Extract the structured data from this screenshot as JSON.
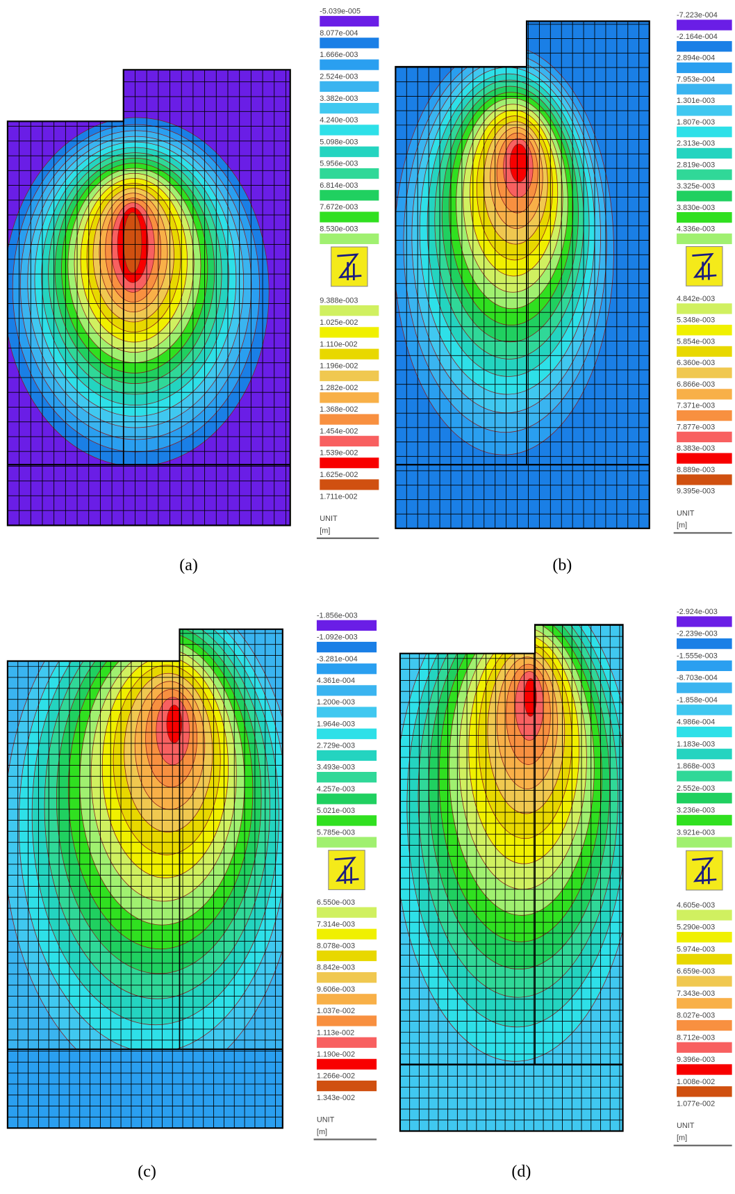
{
  "panels": [
    {
      "caption": "(a)",
      "legend_labels": [
        "-5.039e-005",
        "8.077e-004",
        "1.666e-003",
        "2.524e-003",
        "3.382e-003",
        "4.240e-003",
        "5.098e-003",
        "5.956e-003",
        "6.814e-003",
        "7.672e-003",
        "8.530e-003",
        "9.388e-003",
        "1.025e-002",
        "1.110e-002",
        "1.196e-002",
        "1.282e-002",
        "1.368e-002",
        "1.454e-002",
        "1.539e-002",
        "1.625e-002",
        "1.711e-002"
      ],
      "unit_title": "UNIT",
      "unit": "[m]"
    },
    {
      "caption": "(b)",
      "legend_labels": [
        "-7.223e-004",
        "-2.164e-004",
        "2.894e-004",
        "7.953e-004",
        "1.301e-003",
        "1.807e-003",
        "2.313e-003",
        "2.819e-003",
        "3.325e-003",
        "3.830e-003",
        "4.336e-003",
        "4.842e-003",
        "5.348e-003",
        "5.854e-003",
        "6.360e-003",
        "6.866e-003",
        "7.371e-003",
        "7.877e-003",
        "8.383e-003",
        "8.889e-003",
        "9.395e-003"
      ],
      "unit_title": "UNIT",
      "unit": "[m]"
    },
    {
      "caption": "(c)",
      "legend_labels": [
        "-1.856e-003",
        "-1.092e-003",
        "-3.281e-004",
        "4.361e-004",
        "1.200e-003",
        "1.964e-003",
        "2.729e-003",
        "3.493e-003",
        "4.257e-003",
        "5.021e-003",
        "5.785e-003",
        "6.550e-003",
        "7.314e-003",
        "8.078e-003",
        "8.842e-003",
        "9.606e-003",
        "1.037e-002",
        "1.113e-002",
        "1.190e-002",
        "1.266e-002",
        "1.343e-002"
      ],
      "unit_title": "UNIT",
      "unit": "[m]"
    },
    {
      "caption": "(d)",
      "legend_labels": [
        "-2.924e-003",
        "-2.239e-003",
        "-1.555e-003",
        "-8.703e-004",
        "-1.858e-004",
        "4.986e-004",
        "1.183e-003",
        "1.868e-003",
        "2.552e-003",
        "3.236e-003",
        "3.921e-003",
        "4.605e-003",
        "5.290e-003",
        "5.974e-003",
        "6.659e-003",
        "7.343e-003",
        "8.027e-003",
        "8.712e-003",
        "9.396e-003",
        "1.008e-002",
        "1.077e-002"
      ],
      "unit_title": "UNIT",
      "unit": "[m]"
    }
  ]
}
